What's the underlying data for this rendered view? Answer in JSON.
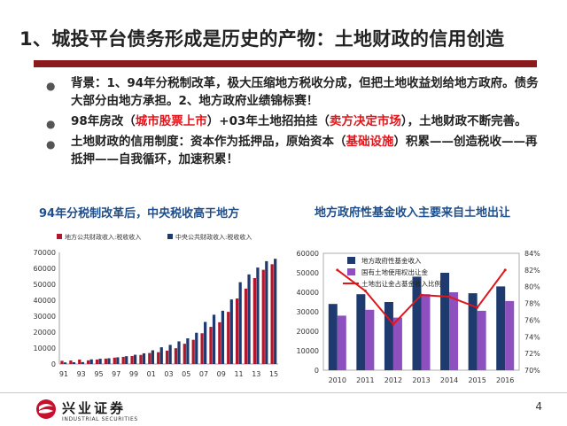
{
  "slide": {
    "title": "1、城投平台债务形成是历史的产物：土地财政的信用创造",
    "page_number": "4"
  },
  "bullets": [
    {
      "parts": [
        {
          "text": "背景：1、94年分税制改革，极大压缩地方税收分成，但把土地收益划给地方政府。债务大部分由地方承担。2、地方政府业绩锦标赛！",
          "red": false
        }
      ]
    },
    {
      "parts": [
        {
          "text": "98年房改（",
          "red": false
        },
        {
          "text": "城市股票上市",
          "red": true
        },
        {
          "text": "）+03年土地招拍挂（",
          "red": false
        },
        {
          "text": "卖方决定市场",
          "red": true
        },
        {
          "text": "），土地财政不断完善。",
          "red": false
        }
      ]
    },
    {
      "parts": [
        {
          "text": "土地财政的信用制度：资本作为抵押品，原始资本（",
          "red": false
        },
        {
          "text": "基础设施",
          "red": true
        },
        {
          "text": "）积累——创造税收——再抵押——自我循环，加速积累！",
          "red": false
        }
      ]
    }
  ],
  "chart_left_title": "94年分税制改革后，中央税收高于地方",
  "chart_right_title": "地方政府性基金收入主要来自土地出让",
  "logo": {
    "cn": "兴业证券",
    "en": "INDUSTRIAL SECURITIES"
  },
  "colors": {
    "accent_red": "#8b1a1f",
    "title_blue": "#1f4e8c",
    "navy": "#1f3a6e",
    "purple": "#8e4fbf",
    "bar_red": "#b2182b"
  },
  "chart_data": [
    {
      "type": "bar",
      "title": "94年分税制改革后，中央税收高于地方",
      "x": [
        "91",
        "92",
        "93",
        "94",
        "95",
        "96",
        "97",
        "98",
        "99",
        "00",
        "01",
        "02",
        "03",
        "04",
        "05",
        "06",
        "07",
        "08",
        "09",
        "10",
        "11",
        "12",
        "13",
        "14",
        "15"
      ],
      "x_ticks": [
        "91",
        "93",
        "95",
        "97",
        "99",
        "01",
        "03",
        "05",
        "07",
        "09",
        "11",
        "13",
        "15"
      ],
      "series": [
        {
          "name": "地方公共财政收入:税收收入",
          "color": "#b2182b",
          "values": [
            2000,
            2200,
            2800,
            2300,
            2800,
            3400,
            4000,
            4500,
            5000,
            5700,
            6900,
            7400,
            8400,
            9900,
            12700,
            15200,
            19300,
            23300,
            26200,
            32700,
            41100,
            47300,
            53900,
            59100,
            62600
          ]
        },
        {
          "name": "中央公共财政收入:税收收入",
          "color": "#1f3a6e",
          "values": [
            1000,
            1100,
            1200,
            2900,
            3300,
            3600,
            4200,
            4900,
            5800,
            6700,
            8600,
            10500,
            12000,
            14200,
            16100,
            19600,
            26400,
            30900,
            33400,
            40500,
            51300,
            56200,
            60500,
            64500,
            66000
          ]
        }
      ],
      "ylim": [
        0,
        70000
      ],
      "y_ticks": [
        0,
        10000,
        20000,
        30000,
        40000,
        50000,
        60000,
        70000
      ],
      "legend": "top",
      "grid": false
    },
    {
      "type": "bar",
      "title": "地方政府性基金收入主要来自土地出让",
      "categories": [
        "2010",
        "2011",
        "2012",
        "2013",
        "2014",
        "2015",
        "2016"
      ],
      "series": [
        {
          "name": "地方政府性基金收入",
          "type": "bar",
          "color": "#1f3a6e",
          "axis": "left",
          "values": [
            34000,
            39000,
            35000,
            48000,
            50000,
            39500,
            43000
          ]
        },
        {
          "name": "国有土地使用权出让金",
          "type": "bar",
          "color": "#8e4fbf",
          "axis": "left",
          "values": [
            28000,
            31000,
            27000,
            39000,
            40000,
            30500,
            35500
          ]
        },
        {
          "name": "土地出让金占基金收入比例",
          "type": "line",
          "color": "#e0161d",
          "axis": "right",
          "values": [
            82,
            79.5,
            75.5,
            79,
            78.8,
            77.5,
            82
          ]
        }
      ],
      "ylim": [
        0,
        60000
      ],
      "y_ticks": [
        0,
        10000,
        20000,
        30000,
        40000,
        50000,
        60000
      ],
      "y2lim": [
        70,
        84
      ],
      "y2_ticks": [
        "70%",
        "72%",
        "74%",
        "76%",
        "78%",
        "80%",
        "82%",
        "84%"
      ],
      "legend": "top-left",
      "grid": false
    }
  ]
}
